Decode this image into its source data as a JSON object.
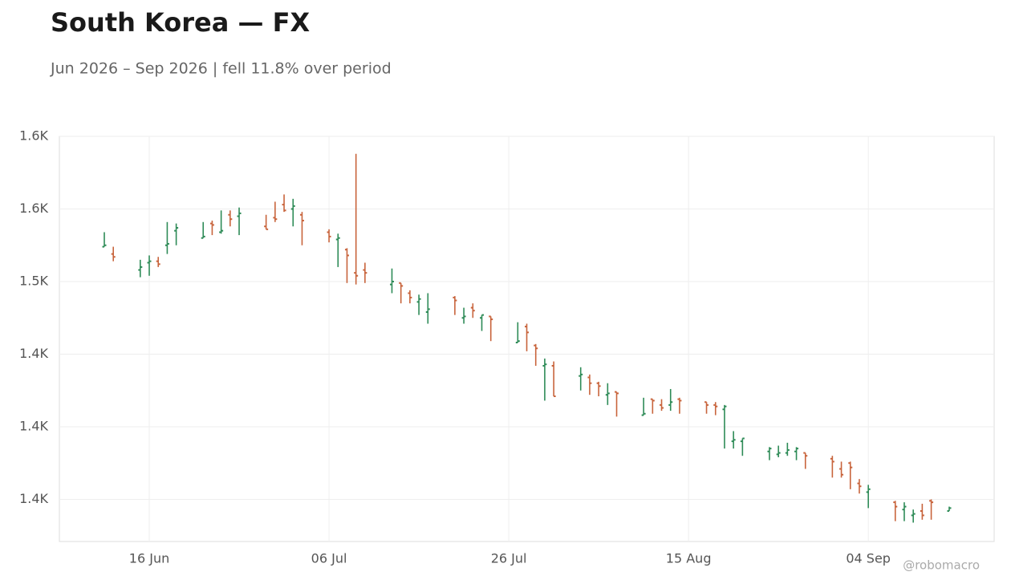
{
  "chart_data": {
    "type": "ohlc",
    "title": "South Korea — FX",
    "subtitle": "Jun 2026 – Sep 2026 | fell 11.8% over period",
    "watermark": "@robomacro",
    "up_color": "#2e8b57",
    "down_color": "#c8643c",
    "grid": true,
    "x": [
      "11 Jun",
      "12 Jun",
      "15 Jun",
      "16 Jun",
      "17 Jun",
      "18 Jun",
      "19 Jun",
      "22 Jun",
      "23 Jun",
      "24 Jun",
      "25 Jun",
      "26 Jun",
      "29 Jun",
      "30 Jun",
      "01 Jul",
      "02 Jul",
      "03 Jul",
      "06 Jul",
      "07 Jul",
      "08 Jul",
      "09 Jul",
      "10 Jul",
      "13 Jul",
      "14 Jul",
      "15 Jul",
      "16 Jul",
      "17 Jul",
      "20 Jul",
      "21 Jul",
      "22 Jul",
      "23 Jul",
      "24 Jul",
      "27 Jul",
      "28 Jul",
      "29 Jul",
      "30 Jul",
      "31 Jul",
      "03 Aug",
      "04 Aug",
      "05 Aug",
      "06 Aug",
      "07 Aug",
      "10 Aug",
      "11 Aug",
      "12 Aug",
      "13 Aug",
      "14 Aug",
      "17 Aug",
      "18 Aug",
      "19 Aug",
      "20 Aug",
      "21 Aug",
      "24 Aug",
      "25 Aug",
      "26 Aug",
      "27 Aug",
      "28 Aug",
      "31 Aug",
      "01 Sep",
      "02 Sep",
      "03 Sep",
      "04 Sep",
      "07 Sep",
      "08 Sep",
      "09 Sep",
      "10 Sep",
      "11 Sep",
      "13 Sep"
    ],
    "open": [
      1524,
      1519,
      1508,
      1513,
      1514,
      1525,
      1535,
      1530,
      1540,
      1534,
      1546,
      1545,
      1538,
      1544,
      1553,
      1550,
      1546,
      1534,
      1529,
      1522,
      1506,
      1508,
      1498,
      1499,
      1492,
      1486,
      1479,
      1489,
      1475,
      1482,
      1475,
      1476,
      1458,
      1469,
      1456,
      1442,
      1442,
      1435,
      1434,
      1430,
      1422,
      1424,
      1408,
      1419,
      1415,
      1415,
      1419,
      1417,
      1415,
      1412,
      1390,
      1390,
      1383,
      1381,
      1382,
      1383,
      1382,
      1378,
      1371,
      1375,
      1361,
      1355,
      1348,
      1343,
      1339,
      1342,
      1349,
      1342
    ],
    "high": [
      1534,
      1524,
      1515,
      1518,
      1517,
      1541,
      1540,
      1541,
      1542,
      1549,
      1549,
      1551,
      1546,
      1555,
      1560,
      1557,
      1548,
      1536,
      1533,
      1523,
      1588,
      1513,
      1509,
      1499,
      1494,
      1491,
      1492,
      1490,
      1482,
      1485,
      1477,
      1476,
      1472,
      1471,
      1457,
      1447,
      1445,
      1441,
      1436,
      1431,
      1430,
      1424,
      1420,
      1419,
      1419,
      1426,
      1420,
      1417,
      1417,
      1415,
      1397,
      1392,
      1386,
      1387,
      1389,
      1386,
      1382,
      1380,
      1376,
      1376,
      1364,
      1360,
      1349,
      1348,
      1343,
      1347,
      1350,
      1345
    ],
    "low": [
      1524,
      1514,
      1503,
      1504,
      1510,
      1519,
      1525,
      1530,
      1532,
      1533,
      1538,
      1532,
      1536,
      1541,
      1548,
      1538,
      1525,
      1527,
      1510,
      1499,
      1498,
      1499,
      1492,
      1485,
      1485,
      1477,
      1471,
      1477,
      1471,
      1475,
      1466,
      1459,
      1458,
      1452,
      1442,
      1418,
      1421,
      1425,
      1422,
      1421,
      1415,
      1407,
      1408,
      1409,
      1411,
      1411,
      1409,
      1409,
      1408,
      1385,
      1385,
      1380,
      1377,
      1379,
      1380,
      1377,
      1371,
      1365,
      1365,
      1357,
      1354,
      1344,
      1335,
      1335,
      1334,
      1336,
      1336,
      1342
    ],
    "close": [
      1525,
      1517,
      1510,
      1514,
      1512,
      1526,
      1537,
      1531,
      1539,
      1535,
      1543,
      1547,
      1536,
      1543,
      1549,
      1552,
      1542,
      1531,
      1530,
      1518,
      1504,
      1506,
      1500,
      1497,
      1489,
      1488,
      1481,
      1487,
      1476,
      1480,
      1477,
      1474,
      1459,
      1465,
      1454,
      1443,
      1421,
      1436,
      1430,
      1428,
      1423,
      1423,
      1409,
      1418,
      1413,
      1417,
      1418,
      1415,
      1414,
      1414,
      1391,
      1392,
      1385,
      1382,
      1384,
      1385,
      1380,
      1376,
      1367,
      1372,
      1359,
      1357,
      1345,
      1345,
      1340,
      1339,
      1348,
      1344
    ],
    "xlim": [
      "06 Jun",
      "18 Sep"
    ],
    "xticks": [
      "16 Jun",
      "06 Jul",
      "26 Jul",
      "15 Aug",
      "04 Sep"
    ],
    "ylim": [
      1321,
      1600
    ],
    "yticks": [
      {
        "value": 1350,
        "label": "1.4K"
      },
      {
        "value": 1400,
        "label": "1.4K"
      },
      {
        "value": 1450,
        "label": "1.4K"
      },
      {
        "value": 1500,
        "label": "1.5K"
      },
      {
        "value": 1550,
        "label": "1.6K"
      },
      {
        "value": 1600,
        "label": "1.6K"
      }
    ]
  }
}
